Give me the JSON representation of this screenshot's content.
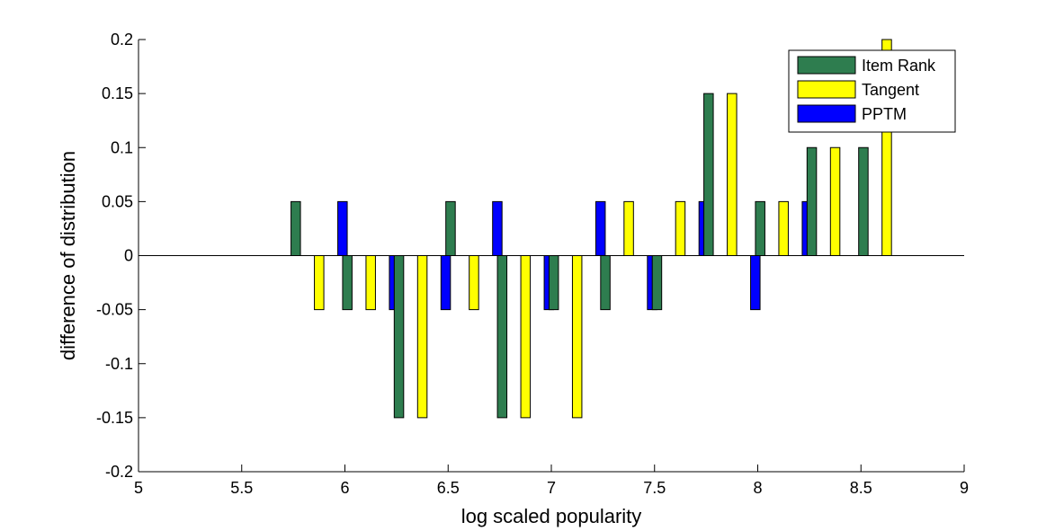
{
  "chart_data": {
    "type": "bar",
    "xlabel": "log scaled popularity",
    "ylabel": "difference of distribution",
    "xlim": [
      5,
      9
    ],
    "ylim": [
      -0.2,
      0.2
    ],
    "xticks": [
      5,
      5.5,
      6,
      6.5,
      7,
      7.5,
      8,
      8.5,
      9
    ],
    "xtick_labels": [
      "5",
      "5.5",
      "6",
      "6.5",
      "7",
      "7.5",
      "8",
      "8.5",
      "9"
    ],
    "yticks": [
      -0.2,
      -0.15,
      -0.1,
      -0.05,
      0,
      0.05,
      0.1,
      0.15,
      0.2
    ],
    "ytick_labels": [
      "-0.2",
      "-0.15",
      "-0.1",
      "-0.05",
      "0",
      "0.05",
      "0.1",
      "0.15",
      "0.2"
    ],
    "categories": [
      5.875,
      6.125,
      6.375,
      6.625,
      6.875,
      7.125,
      7.375,
      7.625,
      7.875,
      8.125,
      8.375,
      8.625
    ],
    "series": [
      {
        "name": "Item Rank",
        "color": "#2e7d4f",
        "values": [
          0.05,
          -0.05,
          -0.15,
          0.05,
          -0.15,
          -0.05,
          -0.05,
          -0.05,
          0.15,
          0.05,
          0.1,
          0.1
        ]
      },
      {
        "name": "Tangent",
        "color": "#ffff00",
        "values": [
          -0.05,
          -0.05,
          -0.15,
          -0.05,
          -0.15,
          -0.15,
          0.05,
          0.05,
          0.15,
          0.05,
          0.1,
          0.2
        ]
      },
      {
        "name": "PPTM",
        "color": "#0000ff",
        "values": [
          0.05,
          -0.05,
          -0.05,
          0.05,
          -0.05,
          0.05,
          -0.05,
          0.05,
          -0.05,
          0.05,
          0,
          0
        ]
      }
    ],
    "legend_position": "top-right",
    "grid": false,
    "zero_line": true
  }
}
